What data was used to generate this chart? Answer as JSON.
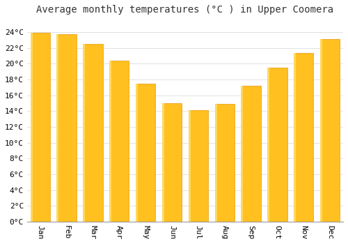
{
  "title": "Average monthly temperatures (°C ) in Upper Coomera",
  "months": [
    "Jan",
    "Feb",
    "Mar",
    "Apr",
    "May",
    "Jun",
    "Jul",
    "Aug",
    "Sep",
    "Oct",
    "Nov",
    "Dec"
  ],
  "values": [
    23.9,
    23.7,
    22.5,
    20.4,
    17.5,
    15.0,
    14.1,
    14.9,
    17.2,
    19.5,
    21.4,
    23.1
  ],
  "bar_color": "#FFC020",
  "bar_edge_color": "#E8960A",
  "background_color": "#FFFFFF",
  "grid_color": "#DDDDDD",
  "ylim": [
    0,
    25.5
  ],
  "yticks": [
    0,
    2,
    4,
    6,
    8,
    10,
    12,
    14,
    16,
    18,
    20,
    22,
    24
  ],
  "title_fontsize": 10,
  "tick_fontsize": 8,
  "font_family": "monospace"
}
